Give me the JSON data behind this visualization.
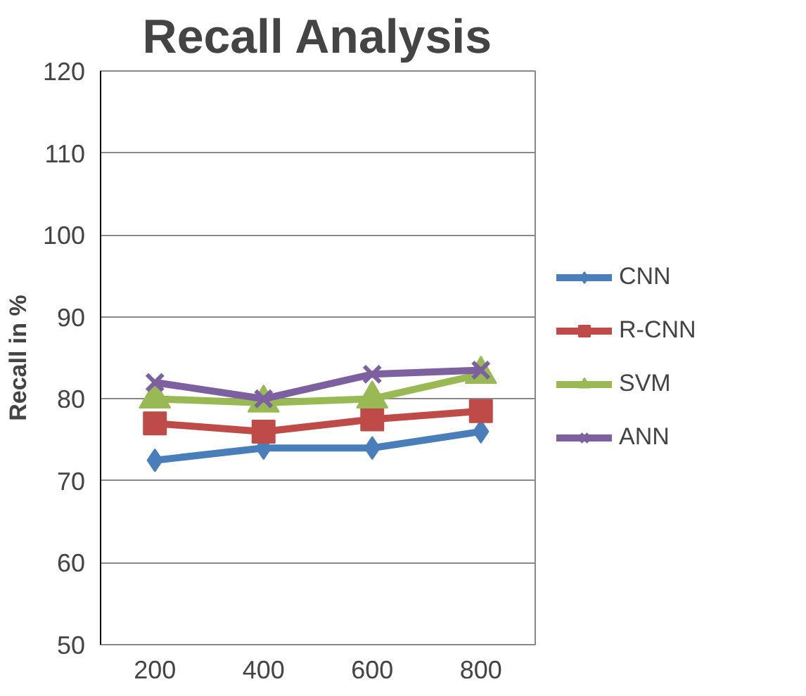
{
  "chart_data": {
    "type": "line",
    "title": "Recall Analysis",
    "ylabel": "Recall in %",
    "categories": [
      "200",
      "400",
      "600",
      "800"
    ],
    "series": [
      {
        "name": "CNN",
        "color": "#4a7ebb",
        "marker": "diamond",
        "values": [
          72.5,
          74,
          74,
          76
        ]
      },
      {
        "name": "R-CNN",
        "color": "#be4b48",
        "marker": "square",
        "values": [
          77,
          76,
          77.5,
          78.5
        ]
      },
      {
        "name": "SVM",
        "color": "#98b954",
        "marker": "triangle",
        "values": [
          80,
          79.5,
          80,
          83
        ]
      },
      {
        "name": "ANN",
        "color": "#7d60a0",
        "marker": "x",
        "values": [
          82,
          80,
          83,
          83.5
        ]
      }
    ],
    "ylim": [
      50,
      120
    ],
    "yticks": [
      50,
      60,
      70,
      80,
      90,
      100,
      110,
      120
    ],
    "grid": "y",
    "legend": "right"
  }
}
